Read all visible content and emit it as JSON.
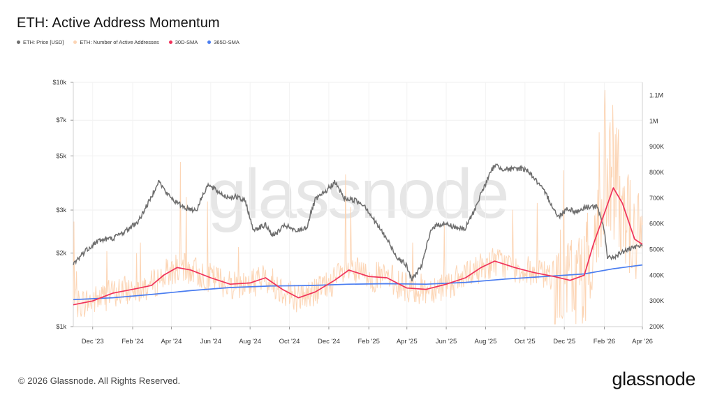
{
  "title": "ETH: Active Address Momentum",
  "legend": [
    {
      "label": "ETH: Price [USD]",
      "color": "#6e6e6e"
    },
    {
      "label": "ETH: Number of Active Addresses",
      "color": "#fcd5b5"
    },
    {
      "label": "30D-SMA",
      "color": "#f0325a"
    },
    {
      "label": "365D-SMA",
      "color": "#4a7df0"
    }
  ],
  "footer": "© 2026 Glassnode. All Rights Reserved.",
  "brand": "glassnode",
  "watermark": "glassnode",
  "chart_data": {
    "type": "line",
    "x_axis": {
      "start": "2023-11-01",
      "end": "2026-04-01",
      "tick_labels": [
        "Dec '23",
        "Feb '24",
        "Apr '24",
        "Jun '24",
        "Aug '24",
        "Oct '24",
        "Dec '24",
        "Feb '25",
        "Apr '25",
        "Jun '25",
        "Aug '25",
        "Oct '25",
        "Dec '25",
        "Feb '26",
        "Apr '26"
      ]
    },
    "y_left": {
      "scale": "log",
      "range": [
        1000,
        10000
      ],
      "tick_labels": [
        "$1k",
        "$2k",
        "$3k",
        "$5k",
        "$7k",
        "$10k"
      ],
      "tick_values": [
        1000,
        2000,
        3000,
        5000,
        7000,
        10000
      ]
    },
    "y_right": {
      "scale": "linear",
      "range": [
        200000,
        1150000
      ],
      "tick_labels": [
        "200K",
        "300K",
        "400K",
        "500K",
        "600K",
        "700K",
        "800K",
        "900K",
        "1M",
        "1.1M"
      ],
      "tick_values": [
        200000,
        300000,
        400000,
        500000,
        600000,
        700000,
        800000,
        900000,
        1000000,
        1100000
      ]
    },
    "series": [
      {
        "name": "ETH: Price [USD]",
        "axis": "left",
        "color": "#6e6e6e",
        "x": [
          "2023-11-01",
          "2023-11-20",
          "2023-12-10",
          "2024-01-01",
          "2024-01-20",
          "2024-02-10",
          "2024-02-28",
          "2024-03-12",
          "2024-03-25",
          "2024-04-10",
          "2024-04-25",
          "2024-05-10",
          "2024-05-27",
          "2024-06-10",
          "2024-06-25",
          "2024-07-10",
          "2024-07-25",
          "2024-08-05",
          "2024-08-25",
          "2024-09-06",
          "2024-09-25",
          "2024-10-10",
          "2024-10-28",
          "2024-11-10",
          "2024-11-25",
          "2024-12-10",
          "2024-12-25",
          "2025-01-10",
          "2025-01-25",
          "2025-02-10",
          "2025-02-28",
          "2025-03-15",
          "2025-03-30",
          "2025-04-09",
          "2025-04-25",
          "2025-05-10",
          "2025-05-28",
          "2025-06-15",
          "2025-06-30",
          "2025-07-15",
          "2025-07-30",
          "2025-08-15",
          "2025-08-25",
          "2025-09-10",
          "2025-09-25",
          "2025-10-06",
          "2025-10-20",
          "2025-11-05",
          "2025-11-21",
          "2025-12-05",
          "2025-12-20",
          "2026-01-05",
          "2026-01-20",
          "2026-02-01",
          "2026-02-06",
          "2026-02-20",
          "2026-03-05",
          "2026-03-20",
          "2026-04-01"
        ],
        "values": [
          1800,
          2050,
          2250,
          2300,
          2450,
          2700,
          3300,
          3950,
          3500,
          3200,
          3050,
          3000,
          3800,
          3600,
          3400,
          3400,
          3250,
          2500,
          2600,
          2350,
          2600,
          2450,
          2550,
          3300,
          3550,
          3900,
          3350,
          3300,
          3150,
          2700,
          2300,
          1950,
          1800,
          1550,
          1800,
          2550,
          2650,
          2550,
          2500,
          3000,
          3750,
          4600,
          4450,
          4400,
          4450,
          4350,
          3900,
          3400,
          2800,
          3050,
          2950,
          3100,
          3100,
          2500,
          1900,
          1950,
          2050,
          2100,
          2150
        ]
      },
      {
        "name": "30D-SMA",
        "axis": "right",
        "color": "#f0325a",
        "x": [
          "2023-11-01",
          "2023-12-01",
          "2024-01-01",
          "2024-02-01",
          "2024-03-01",
          "2024-03-20",
          "2024-04-10",
          "2024-05-01",
          "2024-06-01",
          "2024-07-01",
          "2024-08-01",
          "2024-08-25",
          "2024-09-20",
          "2024-10-15",
          "2024-11-10",
          "2024-12-10",
          "2025-01-01",
          "2025-02-01",
          "2025-03-01",
          "2025-04-01",
          "2025-05-01",
          "2025-06-01",
          "2025-07-01",
          "2025-07-25",
          "2025-08-15",
          "2025-09-15",
          "2025-10-15",
          "2025-11-15",
          "2025-12-10",
          "2026-01-01",
          "2026-01-15",
          "2026-02-01",
          "2026-02-15",
          "2026-03-01",
          "2026-03-20",
          "2026-04-01"
        ],
        "values": [
          285000,
          300000,
          330000,
          345000,
          360000,
          400000,
          430000,
          420000,
          390000,
          365000,
          370000,
          390000,
          345000,
          312000,
          335000,
          380000,
          420000,
          395000,
          390000,
          350000,
          345000,
          365000,
          390000,
          430000,
          455000,
          430000,
          410000,
          395000,
          380000,
          400000,
          520000,
          640000,
          740000,
          680000,
          540000,
          520000
        ]
      },
      {
        "name": "365D-SMA",
        "axis": "right",
        "color": "#4a7df0",
        "x": [
          "2023-11-01",
          "2024-01-01",
          "2024-03-01",
          "2024-05-01",
          "2024-07-01",
          "2024-09-01",
          "2024-11-01",
          "2025-01-01",
          "2025-03-01",
          "2025-05-01",
          "2025-07-01",
          "2025-09-01",
          "2025-11-01",
          "2026-01-01",
          "2026-02-15",
          "2026-04-01"
        ],
        "values": [
          305000,
          312000,
          325000,
          340000,
          352000,
          358000,
          360000,
          365000,
          367000,
          365000,
          372000,
          385000,
          395000,
          405000,
          425000,
          440000
        ]
      }
    ]
  }
}
